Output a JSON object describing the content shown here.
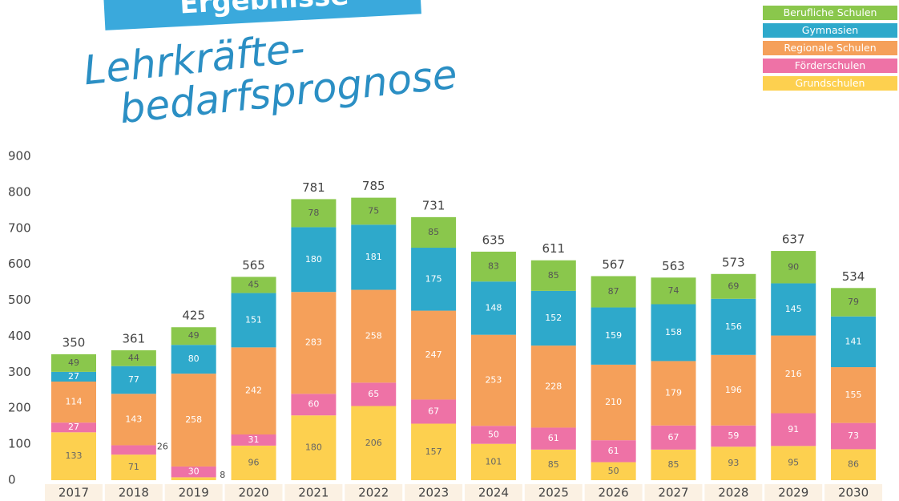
{
  "chart_data": {
    "type": "stacked_bar",
    "banner": "Ergebnisse",
    "title_lines": [
      "Lehrkräfte-",
      "bedarfsprognose"
    ],
    "categories": [
      "2017",
      "2018",
      "2019",
      "2020",
      "2021",
      "2022",
      "2023",
      "2024",
      "2025",
      "2026",
      "2027",
      "2028",
      "2029",
      "2030"
    ],
    "series": [
      {
        "name": "Grundschulen",
        "color": "#fdd04f",
        "values": [
          133,
          71,
          8,
          96,
          180,
          206,
          157,
          101,
          85,
          50,
          85,
          93,
          95,
          86
        ]
      },
      {
        "name": "Förderschulen",
        "color": "#ee72a6",
        "values": [
          27,
          26,
          30,
          31,
          60,
          65,
          67,
          50,
          61,
          61,
          67,
          59,
          91,
          73
        ]
      },
      {
        "name": "Regionale Schulen",
        "color": "#f5a05a",
        "values": [
          114,
          143,
          258,
          242,
          283,
          258,
          247,
          253,
          228,
          210,
          179,
          196,
          216,
          155
        ]
      },
      {
        "name": "Gymnasien",
        "color": "#2ea9cb",
        "values": [
          27,
          77,
          80,
          151,
          180,
          181,
          175,
          148,
          152,
          159,
          158,
          156,
          145,
          141
        ]
      },
      {
        "name": "Berufliche Schulen",
        "color": "#8ac74c",
        "values": [
          49,
          44,
          49,
          45,
          78,
          75,
          85,
          83,
          85,
          87,
          74,
          69,
          90,
          79
        ]
      }
    ],
    "totals": [
      350,
      361,
      425,
      565,
      781,
      785,
      731,
      635,
      611,
      567,
      563,
      573,
      637,
      534
    ],
    "ylim": [
      0,
      900
    ],
    "yticks": [
      0,
      100,
      200,
      300,
      400,
      500,
      600,
      700,
      800,
      900
    ],
    "legend": "top-right"
  }
}
